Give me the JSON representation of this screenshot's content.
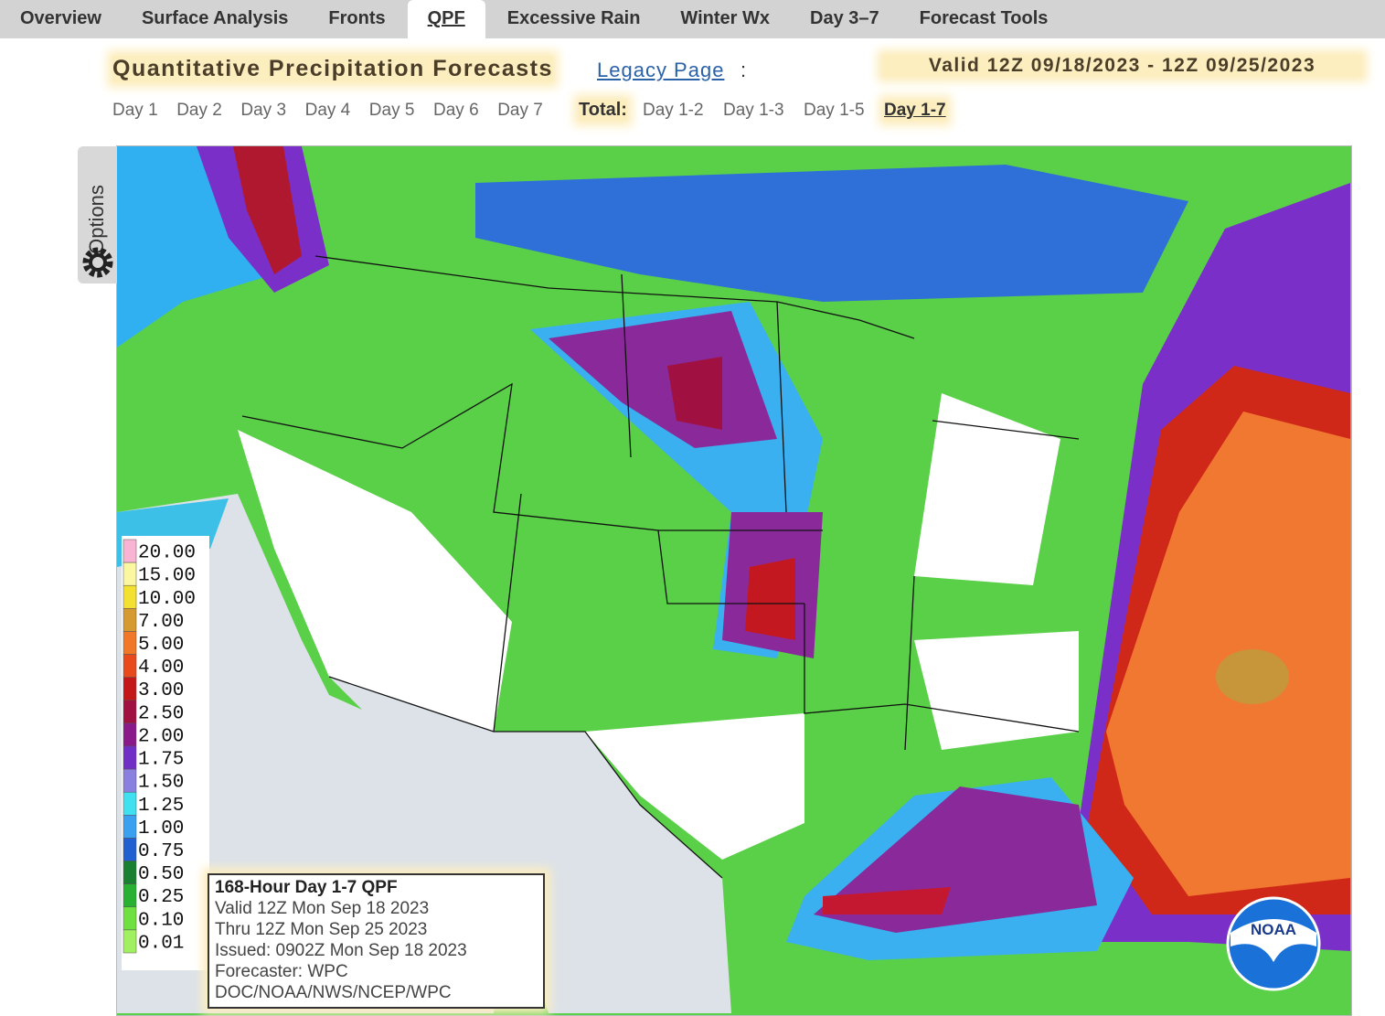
{
  "nav": {
    "tabs": [
      "Overview",
      "Surface Analysis",
      "Fronts",
      "QPF",
      "Excessive Rain",
      "Winter Wx",
      "Day 3–7",
      "Forecast Tools"
    ],
    "active": 3
  },
  "header": {
    "title": "Quantitative Precipitation Forecasts",
    "link": "Legacy Page",
    "link_suffix": ":",
    "valid": "Valid 12Z 09/18/2023 - 12Z 09/25/2023"
  },
  "days": [
    "Day 1",
    "Day 2",
    "Day 3",
    "Day 4",
    "Day 5",
    "Day 6",
    "Day 7"
  ],
  "total": {
    "label": "Total:",
    "links": [
      "Day 1-2",
      "Day 1-3",
      "Day 1-5",
      "Day 1-7"
    ],
    "active": 3
  },
  "map": {
    "options": "Options",
    "legend": [
      {
        "label": "20.00",
        "color": "#f9b4d4"
      },
      {
        "label": "15.00",
        "color": "#fbf6a0"
      },
      {
        "label": "10.00",
        "color": "#f3e030"
      },
      {
        "label": "7.00",
        "color": "#d59a30"
      },
      {
        "label": "5.00",
        "color": "#f07828"
      },
      {
        "label": "4.00",
        "color": "#e84a1c"
      },
      {
        "label": "3.00",
        "color": "#c41818"
      },
      {
        "label": "2.50",
        "color": "#a01040"
      },
      {
        "label": "2.00",
        "color": "#8a1a8a"
      },
      {
        "label": "1.75",
        "color": "#7030c8"
      },
      {
        "label": "1.50",
        "color": "#8a80e0"
      },
      {
        "label": "1.25",
        "color": "#40e0f0"
      },
      {
        "label": "1.00",
        "color": "#3aa0f0"
      },
      {
        "label": "0.75",
        "color": "#2060d0"
      },
      {
        "label": "0.50",
        "color": "#188030"
      },
      {
        "label": "0.25",
        "color": "#28b030"
      },
      {
        "label": "0.10",
        "color": "#6ee040"
      },
      {
        "label": "0.01",
        "color": "#a0f060"
      }
    ],
    "info": {
      "title": "168-Hour Day 1-7 QPF",
      "lines": [
        "Valid 12Z Mon Sep 18 2023",
        "Thru 12Z Mon Sep 25 2023",
        "Issued: 0902Z Mon Sep 18 2023",
        "Forecaster: WPC",
        "DOC/NOAA/NWS/NCEP/WPC"
      ]
    },
    "logo": "NOAA"
  }
}
